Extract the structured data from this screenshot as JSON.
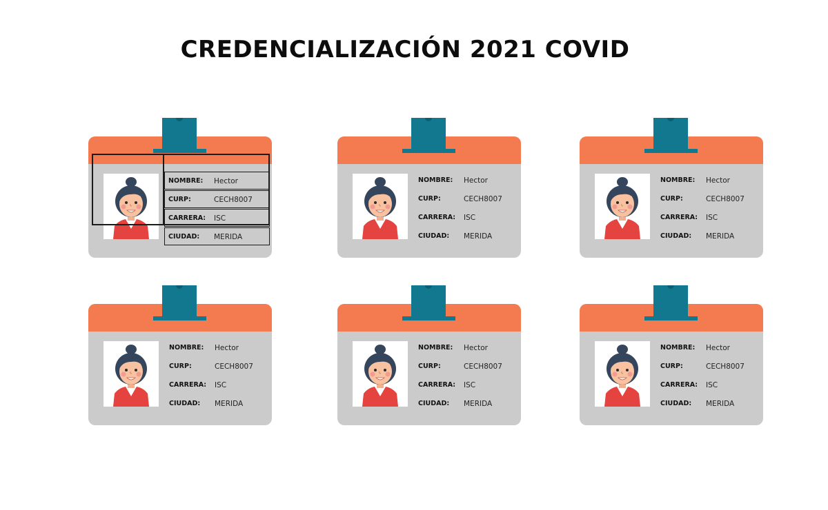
{
  "page": {
    "title": "CREDENCIALIZACIÓN 2021 COVID"
  },
  "colors": {
    "card_top": "#f47b4f",
    "card_body": "#cbcbcb",
    "clip": "#12788f"
  },
  "cards": [
    {
      "photo_icon": "woman-avatar-icon",
      "fields": [
        {
          "label": "NOMBRE:",
          "value": "Hector"
        },
        {
          "label": "CURP:",
          "value": "CECH8007"
        },
        {
          "label": "CARRERA:",
          "value": "ISC"
        },
        {
          "label": "CIUDAD:",
          "value": "MERIDA"
        }
      ]
    },
    {
      "photo_icon": "woman-avatar-icon",
      "fields": [
        {
          "label": "NOMBRE:",
          "value": "Hector"
        },
        {
          "label": "CURP:",
          "value": "CECH8007"
        },
        {
          "label": "CARRERA:",
          "value": "ISC"
        },
        {
          "label": "CIUDAD:",
          "value": "MERIDA"
        }
      ]
    },
    {
      "photo_icon": "woman-avatar-icon",
      "fields": [
        {
          "label": "NOMBRE:",
          "value": "Hector"
        },
        {
          "label": "CURP:",
          "value": "CECH8007"
        },
        {
          "label": "CARRERA:",
          "value": "ISC"
        },
        {
          "label": "CIUDAD:",
          "value": "MERIDA"
        }
      ]
    },
    {
      "photo_icon": "woman-avatar-icon",
      "fields": [
        {
          "label": "NOMBRE:",
          "value": "Hector"
        },
        {
          "label": "CURP:",
          "value": "CECH8007"
        },
        {
          "label": "CARRERA:",
          "value": "ISC"
        },
        {
          "label": "CIUDAD:",
          "value": "MERIDA"
        }
      ]
    },
    {
      "photo_icon": "woman-avatar-icon",
      "fields": [
        {
          "label": "NOMBRE:",
          "value": "Hector"
        },
        {
          "label": "CURP:",
          "value": "CECH8007"
        },
        {
          "label": "CARRERA:",
          "value": "ISC"
        },
        {
          "label": "CIUDAD:",
          "value": "MERIDA"
        }
      ]
    },
    {
      "photo_icon": "woman-avatar-icon",
      "fields": [
        {
          "label": "NOMBRE:",
          "value": "Hector"
        },
        {
          "label": "CURP:",
          "value": "CECH8007"
        },
        {
          "label": "CARRERA:",
          "value": "ISC"
        },
        {
          "label": "CIUDAD:",
          "value": "MERIDA"
        }
      ]
    }
  ]
}
